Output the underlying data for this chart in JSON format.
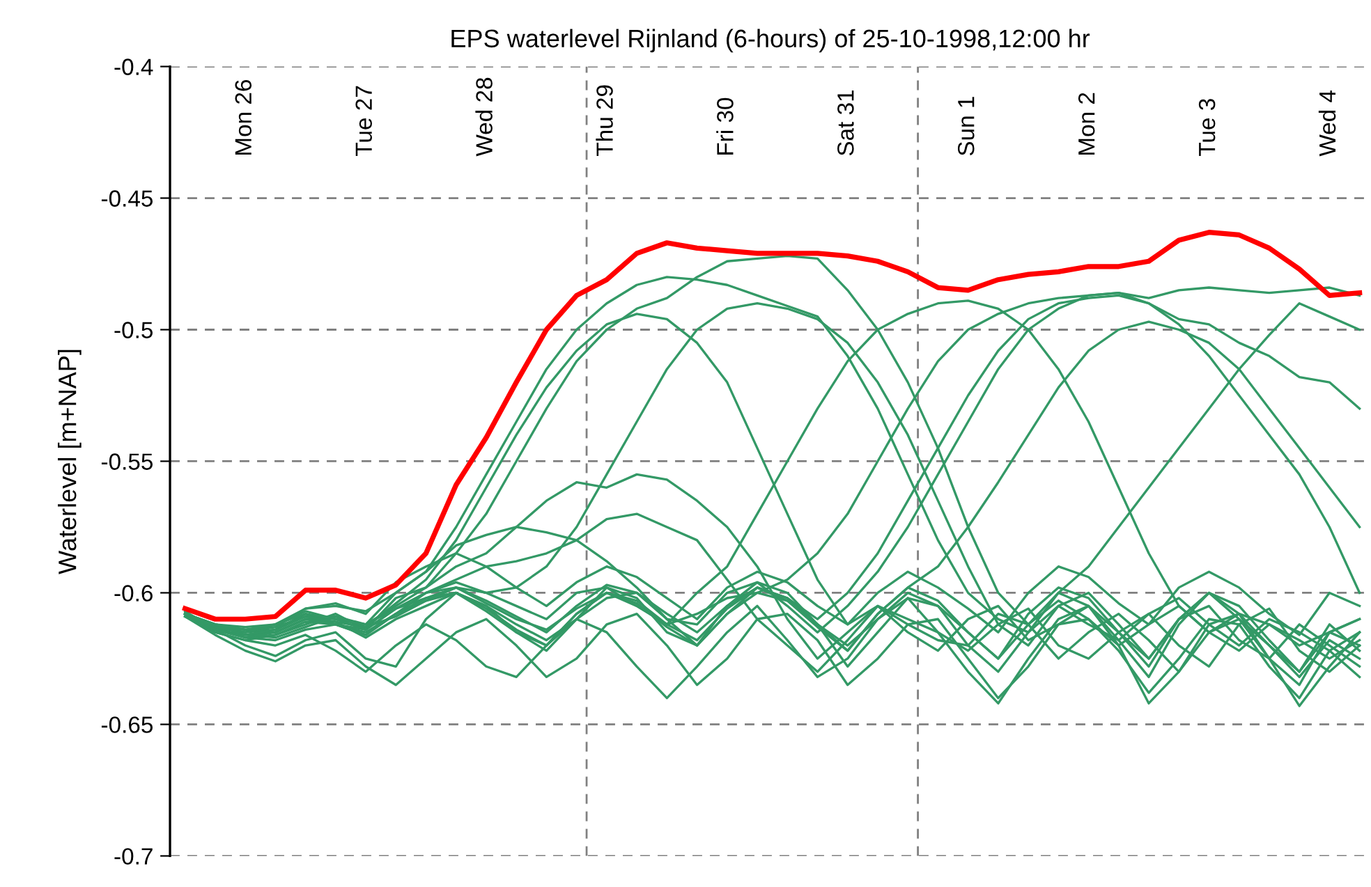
{
  "chart_data": {
    "type": "line",
    "title": "EPS waterlevel Rijnland (6-hours) of 25-10-1998,12:00 hr",
    "ylabel": "Waterlevel [m+NAP]",
    "x": [
      "1998-10-25T12:00",
      "1998-10-25T18:00",
      "1998-10-26T00:00",
      "1998-10-26T06:00",
      "1998-10-26T12:00",
      "1998-10-26T18:00",
      "1998-10-27T00:00",
      "1998-10-27T06:00",
      "1998-10-27T12:00",
      "1998-10-27T18:00",
      "1998-10-28T00:00",
      "1998-10-28T06:00",
      "1998-10-28T12:00",
      "1998-10-28T18:00",
      "1998-10-29T00:00",
      "1998-10-29T06:00",
      "1998-10-29T12:00",
      "1998-10-29T18:00",
      "1998-10-30T00:00",
      "1998-10-30T06:00",
      "1998-10-30T12:00",
      "1998-10-30T18:00",
      "1998-10-31T00:00",
      "1998-10-31T06:00",
      "1998-10-31T12:00",
      "1998-10-31T18:00",
      "1998-11-01T00:00",
      "1998-11-01T06:00",
      "1998-11-01T12:00",
      "1998-11-01T18:00",
      "1998-11-02T00:00",
      "1998-11-02T06:00",
      "1998-11-02T12:00",
      "1998-11-02T18:00",
      "1998-11-03T00:00",
      "1998-11-03T06:00",
      "1998-11-03T12:00",
      "1998-11-03T18:00",
      "1998-11-04T00:00",
      "1998-11-04T06:00"
    ],
    "xlim": [
      "1998-10-25T09:00",
      "1998-11-04T08:00"
    ],
    "xticks": [
      {
        "value": "1998-10-26",
        "label": "Mon 26"
      },
      {
        "value": "1998-10-27",
        "label": "Tue 27"
      },
      {
        "value": "1998-10-28",
        "label": "Wed 28"
      },
      {
        "value": "1998-10-29",
        "label": "Thu 29"
      },
      {
        "value": "1998-10-30",
        "label": "Fri 30"
      },
      {
        "value": "1998-10-31",
        "label": "Sat 31"
      },
      {
        "value": "1998-11-01",
        "label": "Sun 1"
      },
      {
        "value": "1998-11-02",
        "label": "Mon 2"
      },
      {
        "value": "1998-11-03",
        "label": "Tue 3"
      },
      {
        "value": "1998-11-04",
        "label": "Wed 4"
      }
    ],
    "ylim": [
      -0.7,
      -0.4
    ],
    "yticks": [
      {
        "value": -0.7,
        "label": "-0.7"
      },
      {
        "value": -0.65,
        "label": "-0.65"
      },
      {
        "value": -0.6,
        "label": "-0.6"
      },
      {
        "value": -0.55,
        "label": "-0.55"
      },
      {
        "value": -0.5,
        "label": "-0.5"
      },
      {
        "value": -0.45,
        "label": "-0.45"
      },
      {
        "value": -0.4,
        "label": "-0.4"
      }
    ],
    "grid": "y",
    "marker": "none",
    "line_style": "solid",
    "ref_lines": [
      {
        "axis": "x",
        "value": "1998-10-28T20:00",
        "label": null,
        "color": "#808080",
        "line_style": "dashed"
      },
      {
        "axis": "x",
        "value": "1998-10-31T14:00",
        "label": null,
        "color": "#808080",
        "line_style": "dashed"
      }
    ],
    "series": [
      {
        "color": "#339966",
        "values": [
          -0.608,
          -0.612,
          -0.613,
          -0.612,
          -0.606,
          -0.605,
          -0.607,
          -0.6,
          -0.592,
          -0.575,
          -0.555,
          -0.535,
          -0.515,
          -0.5,
          -0.49,
          -0.483,
          -0.48,
          -0.481,
          -0.483,
          -0.487,
          -0.491,
          -0.495,
          -0.51,
          -0.53,
          -0.555,
          -0.58,
          -0.6,
          -0.61,
          -0.615,
          -0.605,
          -0.612,
          -0.618,
          -0.608,
          -0.602,
          -0.612,
          -0.62,
          -0.61,
          -0.615,
          -0.622,
          -0.615
        ]
      },
      {
        "color": "#339966",
        "values": [
          -0.608,
          -0.613,
          -0.615,
          -0.614,
          -0.609,
          -0.61,
          -0.612,
          -0.605,
          -0.598,
          -0.585,
          -0.57,
          -0.55,
          -0.53,
          -0.512,
          -0.5,
          -0.492,
          -0.488,
          -0.48,
          -0.474,
          -0.473,
          -0.472,
          -0.473,
          -0.485,
          -0.5,
          -0.52,
          -0.545,
          -0.575,
          -0.6,
          -0.612,
          -0.603,
          -0.61,
          -0.62,
          -0.612,
          -0.605,
          -0.615,
          -0.622,
          -0.612,
          -0.618,
          -0.625,
          -0.618
        ]
      },
      {
        "color": "#339966",
        "values": [
          -0.608,
          -0.614,
          -0.616,
          -0.615,
          -0.61,
          -0.611,
          -0.613,
          -0.604,
          -0.595,
          -0.58,
          -0.56,
          -0.54,
          -0.522,
          -0.508,
          -0.498,
          -0.494,
          -0.496,
          -0.505,
          -0.52,
          -0.545,
          -0.57,
          -0.595,
          -0.612,
          -0.605,
          -0.615,
          -0.622,
          -0.61,
          -0.605,
          -0.618,
          -0.612,
          -0.605,
          -0.615,
          -0.625,
          -0.61,
          -0.605,
          -0.618,
          -0.625,
          -0.612,
          -0.62,
          -0.628
        ]
      },
      {
        "color": "#339966",
        "values": [
          -0.609,
          -0.615,
          -0.618,
          -0.616,
          -0.612,
          -0.608,
          -0.614,
          -0.602,
          -0.598,
          -0.59,
          -0.585,
          -0.575,
          -0.565,
          -0.558,
          -0.56,
          -0.555,
          -0.557,
          -0.565,
          -0.575,
          -0.59,
          -0.61,
          -0.625,
          -0.615,
          -0.605,
          -0.612,
          -0.618,
          -0.62,
          -0.608,
          -0.612,
          -0.625,
          -0.615,
          -0.608,
          -0.618,
          -0.63,
          -0.615,
          -0.61,
          -0.62,
          -0.632,
          -0.618,
          -0.625
        ]
      },
      {
        "color": "#339966",
        "values": [
          -0.608,
          -0.613,
          -0.617,
          -0.618,
          -0.614,
          -0.612,
          -0.616,
          -0.608,
          -0.6,
          -0.595,
          -0.59,
          -0.588,
          -0.585,
          -0.58,
          -0.572,
          -0.57,
          -0.575,
          -0.58,
          -0.595,
          -0.61,
          -0.62,
          -0.63,
          -0.618,
          -0.605,
          -0.61,
          -0.615,
          -0.622,
          -0.612,
          -0.606,
          -0.62,
          -0.625,
          -0.615,
          -0.608,
          -0.62,
          -0.628,
          -0.612,
          -0.606,
          -0.622,
          -0.63,
          -0.62
        ]
      },
      {
        "color": "#339966",
        "values": [
          -0.608,
          -0.612,
          -0.614,
          -0.615,
          -0.61,
          -0.609,
          -0.612,
          -0.606,
          -0.602,
          -0.598,
          -0.6,
          -0.605,
          -0.61,
          -0.6,
          -0.598,
          -0.605,
          -0.612,
          -0.608,
          -0.602,
          -0.6,
          -0.595,
          -0.585,
          -0.57,
          -0.55,
          -0.53,
          -0.512,
          -0.5,
          -0.494,
          -0.49,
          -0.488,
          -0.487,
          -0.486,
          -0.488,
          -0.485,
          -0.484,
          -0.485,
          -0.486,
          -0.485,
          -0.484,
          -0.487
        ]
      },
      {
        "color": "#339966",
        "values": [
          -0.608,
          -0.614,
          -0.616,
          -0.614,
          -0.608,
          -0.612,
          -0.615,
          -0.608,
          -0.603,
          -0.598,
          -0.604,
          -0.61,
          -0.614,
          -0.606,
          -0.6,
          -0.605,
          -0.612,
          -0.6,
          -0.59,
          -0.57,
          -0.55,
          -0.53,
          -0.512,
          -0.5,
          -0.494,
          -0.49,
          -0.489,
          -0.492,
          -0.5,
          -0.515,
          -0.535,
          -0.56,
          -0.585,
          -0.605,
          -0.615,
          -0.608,
          -0.612,
          -0.62,
          -0.615,
          -0.61
        ]
      },
      {
        "color": "#339966",
        "values": [
          -0.608,
          -0.613,
          -0.615,
          -0.613,
          -0.609,
          -0.611,
          -0.617,
          -0.61,
          -0.605,
          -0.6,
          -0.605,
          -0.612,
          -0.618,
          -0.61,
          -0.602,
          -0.6,
          -0.608,
          -0.615,
          -0.605,
          -0.598,
          -0.602,
          -0.61,
          -0.6,
          -0.585,
          -0.565,
          -0.545,
          -0.525,
          -0.508,
          -0.496,
          -0.49,
          -0.488,
          -0.487,
          -0.49,
          -0.498,
          -0.51,
          -0.525,
          -0.54,
          -0.555,
          -0.575,
          -0.6
        ]
      },
      {
        "color": "#339966",
        "values": [
          -0.609,
          -0.614,
          -0.617,
          -0.616,
          -0.611,
          -0.612,
          -0.614,
          -0.606,
          -0.6,
          -0.598,
          -0.603,
          -0.609,
          -0.615,
          -0.605,
          -0.597,
          -0.6,
          -0.61,
          -0.612,
          -0.6,
          -0.596,
          -0.605,
          -0.615,
          -0.605,
          -0.592,
          -0.575,
          -0.555,
          -0.535,
          -0.515,
          -0.5,
          -0.492,
          -0.487,
          -0.486,
          -0.49,
          -0.496,
          -0.498,
          -0.505,
          -0.51,
          -0.518,
          -0.52,
          -0.53
        ]
      },
      {
        "color": "#339966",
        "values": [
          -0.608,
          -0.612,
          -0.616,
          -0.617,
          -0.613,
          -0.609,
          -0.613,
          -0.609,
          -0.603,
          -0.6,
          -0.606,
          -0.614,
          -0.62,
          -0.608,
          -0.6,
          -0.604,
          -0.613,
          -0.62,
          -0.608,
          -0.6,
          -0.603,
          -0.612,
          -0.62,
          -0.61,
          -0.6,
          -0.605,
          -0.615,
          -0.625,
          -0.612,
          -0.6,
          -0.59,
          -0.575,
          -0.56,
          -0.545,
          -0.53,
          -0.515,
          -0.502,
          -0.49,
          -0.495,
          -0.5
        ]
      },
      {
        "color": "#339966",
        "values": [
          -0.607,
          -0.614,
          -0.62,
          -0.624,
          -0.618,
          -0.615,
          -0.625,
          -0.628,
          -0.61,
          -0.6,
          -0.605,
          -0.615,
          -0.622,
          -0.61,
          -0.598,
          -0.602,
          -0.615,
          -0.62,
          -0.605,
          -0.596,
          -0.6,
          -0.612,
          -0.628,
          -0.615,
          -0.602,
          -0.605,
          -0.62,
          -0.63,
          -0.615,
          -0.6,
          -0.605,
          -0.618,
          -0.632,
          -0.612,
          -0.6,
          -0.61,
          -0.625,
          -0.635,
          -0.615,
          -0.62
        ]
      },
      {
        "color": "#339966",
        "values": [
          -0.609,
          -0.616,
          -0.622,
          -0.626,
          -0.62,
          -0.618,
          -0.628,
          -0.635,
          -0.625,
          -0.615,
          -0.61,
          -0.62,
          -0.632,
          -0.625,
          -0.612,
          -0.608,
          -0.62,
          -0.635,
          -0.625,
          -0.61,
          -0.608,
          -0.618,
          -0.635,
          -0.625,
          -0.612,
          -0.61,
          -0.625,
          -0.64,
          -0.628,
          -0.612,
          -0.61,
          -0.622,
          -0.638,
          -0.625,
          -0.61,
          -0.612,
          -0.628,
          -0.64,
          -0.622,
          -0.632
        ]
      },
      {
        "color": "#339966",
        "values": [
          -0.608,
          -0.612,
          -0.614,
          -0.613,
          -0.606,
          -0.604,
          -0.608,
          -0.596,
          -0.59,
          -0.585,
          -0.59,
          -0.598,
          -0.605,
          -0.596,
          -0.59,
          -0.594,
          -0.602,
          -0.61,
          -0.598,
          -0.592,
          -0.596,
          -0.605,
          -0.612,
          -0.6,
          -0.592,
          -0.598,
          -0.606,
          -0.615,
          -0.6,
          -0.59,
          -0.594,
          -0.604,
          -0.612,
          -0.598,
          -0.592,
          -0.598,
          -0.608,
          -0.616,
          -0.6,
          -0.605
        ]
      },
      {
        "color": "#339966",
        "values": [
          -0.608,
          -0.615,
          -0.618,
          -0.62,
          -0.616,
          -0.622,
          -0.63,
          -0.62,
          -0.612,
          -0.618,
          -0.628,
          -0.632,
          -0.62,
          -0.61,
          -0.615,
          -0.628,
          -0.64,
          -0.628,
          -0.615,
          -0.605,
          -0.618,
          -0.632,
          -0.625,
          -0.61,
          -0.602,
          -0.615,
          -0.63,
          -0.642,
          -0.625,
          -0.61,
          -0.605,
          -0.62,
          -0.642,
          -0.63,
          -0.612,
          -0.608,
          -0.625,
          -0.643,
          -0.628,
          -0.615
        ]
      },
      {
        "color": "#339966",
        "values": [
          -0.608,
          -0.613,
          -0.615,
          -0.612,
          -0.607,
          -0.61,
          -0.612,
          -0.6,
          -0.592,
          -0.582,
          -0.578,
          -0.575,
          -0.577,
          -0.58,
          -0.588,
          -0.598,
          -0.61,
          -0.62,
          -0.608,
          -0.598,
          -0.602,
          -0.612,
          -0.622,
          -0.608,
          -0.598,
          -0.603,
          -0.615,
          -0.625,
          -0.608,
          -0.598,
          -0.602,
          -0.615,
          -0.628,
          -0.61,
          -0.6,
          -0.605,
          -0.618,
          -0.63,
          -0.612,
          -0.622
        ]
      },
      {
        "color": "#339966",
        "values": [
          -0.608,
          -0.614,
          -0.617,
          -0.615,
          -0.61,
          -0.612,
          -0.616,
          -0.608,
          -0.602,
          -0.6,
          -0.607,
          -0.615,
          -0.62,
          -0.608,
          -0.6,
          -0.603,
          -0.612,
          -0.618,
          -0.606,
          -0.598,
          -0.603,
          -0.613,
          -0.622,
          -0.608,
          -0.598,
          -0.59,
          -0.575,
          -0.558,
          -0.54,
          -0.522,
          -0.508,
          -0.5,
          -0.497,
          -0.5,
          -0.505,
          -0.515,
          -0.53,
          -0.545,
          -0.56,
          -0.575
        ]
      },
      {
        "color": "#339966",
        "values": [
          -0.608,
          -0.613,
          -0.614,
          -0.612,
          -0.608,
          -0.61,
          -0.614,
          -0.606,
          -0.6,
          -0.596,
          -0.6,
          -0.598,
          -0.59,
          -0.575,
          -0.555,
          -0.535,
          -0.515,
          -0.5,
          -0.492,
          -0.49,
          -0.492,
          -0.496,
          -0.505,
          -0.52,
          -0.54,
          -0.565,
          -0.59,
          -0.612,
          -0.62,
          -0.605,
          -0.6,
          -0.612,
          -0.625,
          -0.61,
          -0.6,
          -0.608,
          -0.62,
          -0.63,
          -0.615,
          -0.61
        ]
      },
      {
        "color": "#ff0000",
        "values": [
          -0.606,
          -0.61,
          -0.61,
          -0.609,
          -0.599,
          -0.599,
          -0.602,
          -0.597,
          -0.585,
          -0.559,
          -0.541,
          -0.52,
          -0.5,
          -0.487,
          -0.481,
          -0.471,
          -0.467,
          -0.469,
          -0.47,
          -0.471,
          -0.471,
          -0.471,
          -0.472,
          -0.474,
          -0.478,
          -0.484,
          -0.485,
          -0.481,
          -0.479,
          -0.478,
          -0.476,
          -0.476,
          -0.474,
          -0.466,
          -0.463,
          -0.464,
          -0.469,
          -0.477,
          -0.487,
          -0.486
        ]
      }
    ]
  }
}
